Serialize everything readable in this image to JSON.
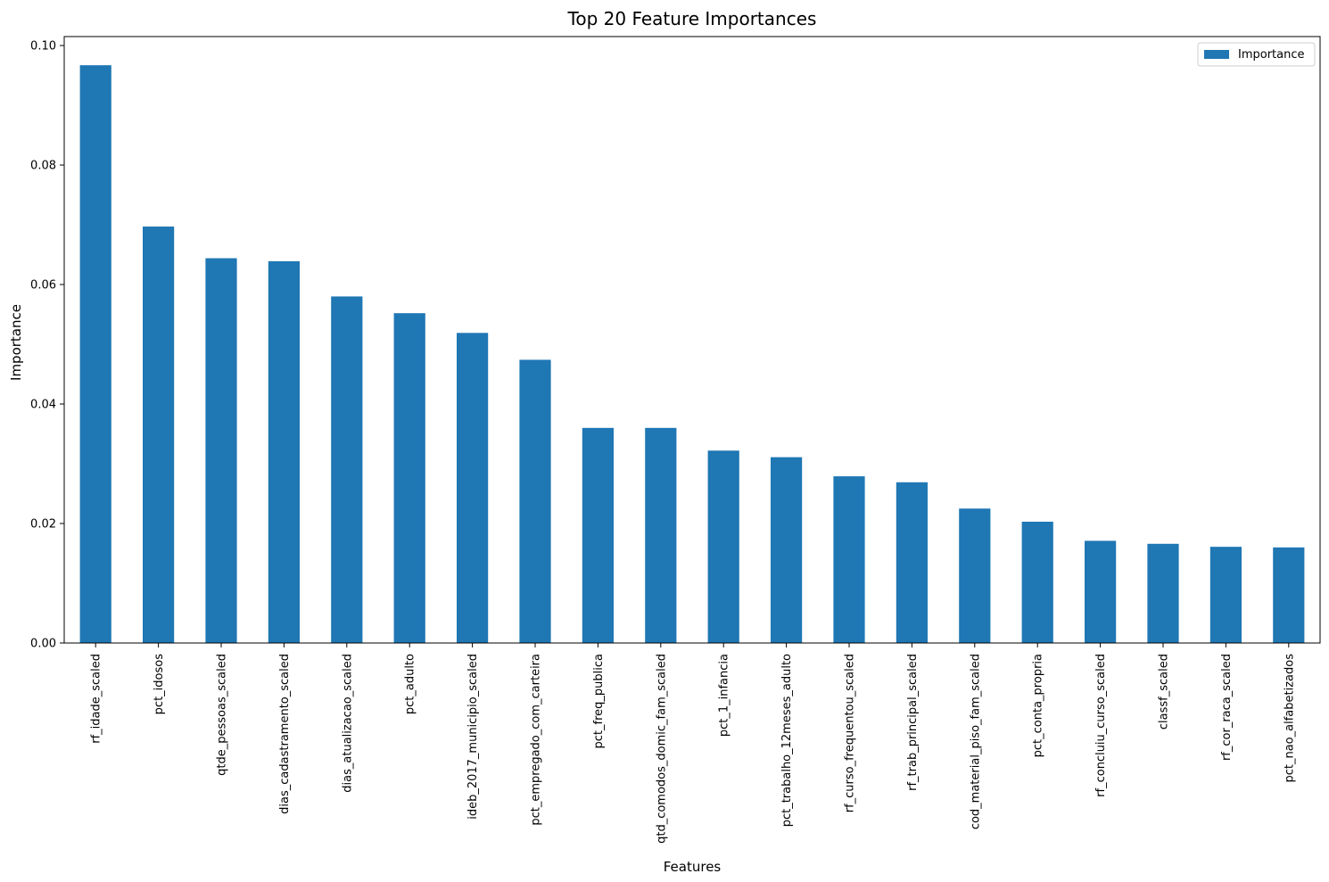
{
  "chart_data": {
    "type": "bar",
    "title": "Top 20 Feature Importances",
    "xlabel": "Features",
    "ylabel": "Importance",
    "ylim": [
      0,
      0.1015
    ],
    "yticks": [
      0.0,
      0.02,
      0.04,
      0.06,
      0.08,
      0.1
    ],
    "ytick_labels": [
      "0.00",
      "0.02",
      "0.04",
      "0.06",
      "0.08",
      "0.10"
    ],
    "grid": false,
    "legend": {
      "position": "top-right",
      "entries": [
        "Importance"
      ]
    },
    "categories": [
      "rf_idade_scaled",
      "pct_idosos",
      "qtde_pessoas_scaled",
      "dias_cadastramento_scaled",
      "dias_atualizacao_scaled",
      "pct_adulto",
      "ideb_2017_municipio_scaled",
      "pct_empregado_com_carteira",
      "pct_freq_publica",
      "qtd_comodos_domic_fam_scaled",
      "pct_1_infancia",
      "pct_trabalho_12meses_adulto",
      "rf_curso_frequentou_scaled",
      "rf_trab_principal_scaled",
      "cod_material_piso_fam_scaled",
      "pct_conta_propria",
      "rf_concluiu_curso_scaled",
      "classf_scaled",
      "rf_cor_raca_scaled",
      "pct_nao_alfabetizados"
    ],
    "series": [
      {
        "name": "Importance",
        "color": "#1f77b4",
        "values": [
          0.0967,
          0.0697,
          0.0644,
          0.0639,
          0.058,
          0.0552,
          0.0519,
          0.0474,
          0.036,
          0.036,
          0.0322,
          0.0311,
          0.0279,
          0.0269,
          0.0225,
          0.0203,
          0.0171,
          0.0166,
          0.0161,
          0.016
        ]
      }
    ]
  }
}
